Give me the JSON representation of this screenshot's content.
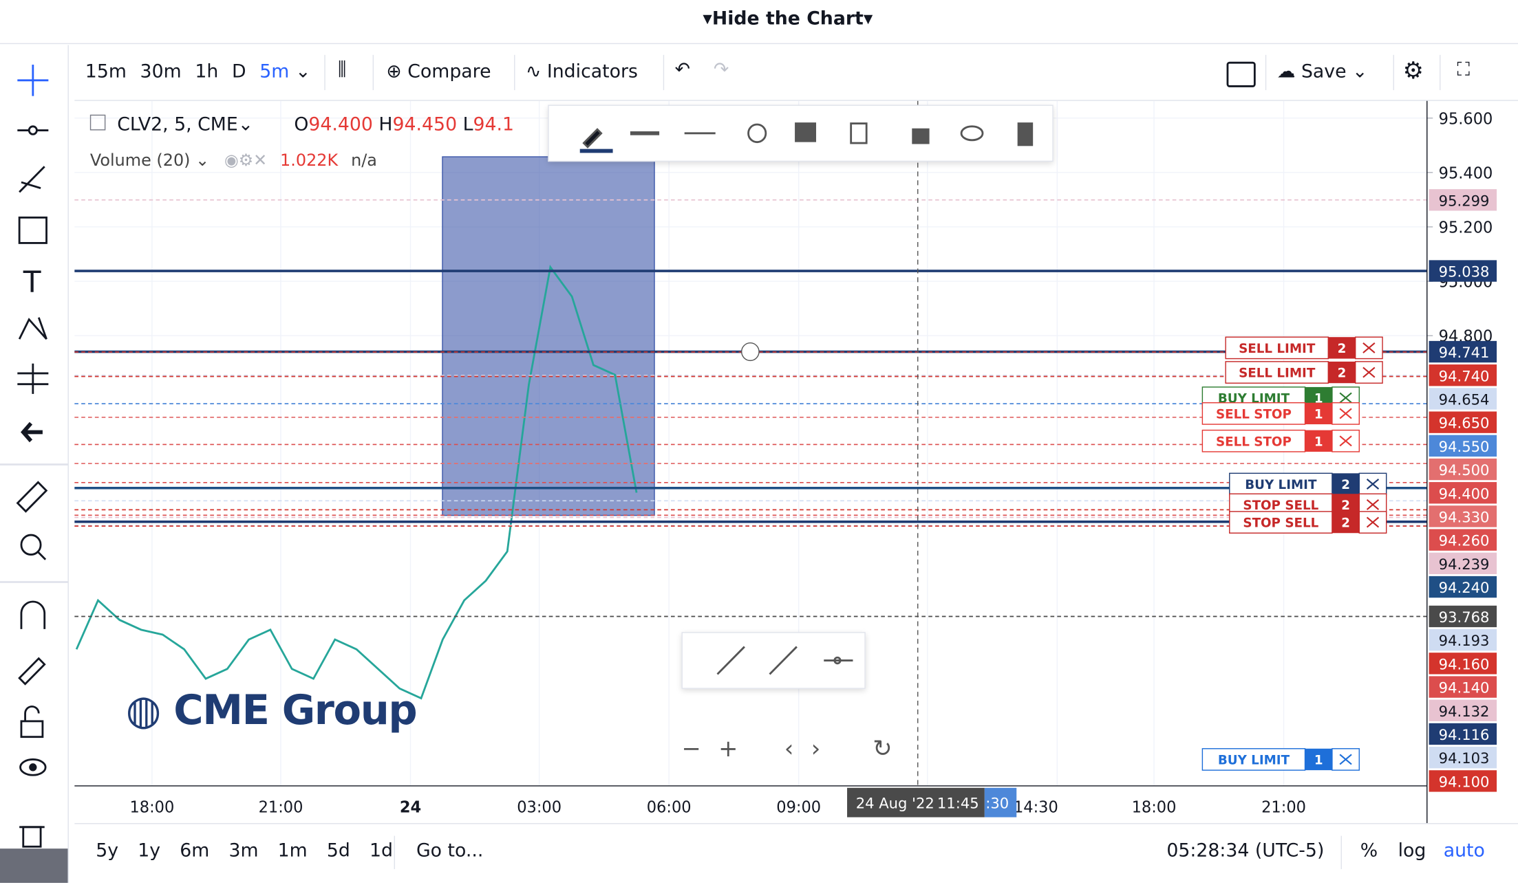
{
  "header": {
    "toggle": "Hide the Chart"
  },
  "toolbar": {
    "intervals": [
      "15m",
      "30m",
      "1h",
      "D",
      "5m"
    ],
    "active_interval": "5m",
    "compare": "Compare",
    "indicators": "Indicators",
    "save": "Save"
  },
  "legend": {
    "symbol": "CLV2, 5, CME",
    "open_key": "O",
    "open": "94.400",
    "high_key": "H",
    "high": "94.450",
    "low_key": "L",
    "low": "94.1",
    "volume": "Volume (20)",
    "volume_value": "1.022K",
    "volume_na": "n/a"
  },
  "watermark": "CME Group",
  "chart_data": {
    "type": "line",
    "color": "#26a69a",
    "x": [
      "16:30",
      "17:00",
      "17:30",
      "18:00",
      "18:30",
      "19:00",
      "19:30",
      "20:00",
      "20:30",
      "21:00",
      "21:30",
      "22:00",
      "22:30",
      "23:00",
      "23:30",
      "00:00",
      "00:30",
      "01:00",
      "01:30",
      "02:00",
      "02:30",
      "03:00",
      "03:30",
      "04:00",
      "04:30",
      "05:00",
      "05:30"
    ],
    "values": [
      93.647,
      93.827,
      93.755,
      93.719,
      93.701,
      93.647,
      93.539,
      93.575,
      93.683,
      93.719,
      93.575,
      93.539,
      93.683,
      93.647,
      93.575,
      93.503,
      93.467,
      93.683,
      93.827,
      93.899,
      94.007,
      94.62,
      95.052,
      94.944,
      94.692,
      94.656,
      94.223
    ],
    "ylim": [
      93.145,
      95.663
    ],
    "yticks": [
      {
        "value": 95.6,
        "label": "95.600"
      },
      {
        "value": 95.4,
        "label": "95.400"
      },
      {
        "value": 95.2,
        "label": "95.200"
      },
      {
        "value": 95,
        "label": "95.000"
      },
      {
        "value": 94.8,
        "label": "94.800"
      }
    ],
    "xtick_labels": [
      "18:00",
      "21:00",
      "24",
      "03:00",
      "06:00",
      "09:00",
      "14:30",
      "18:00",
      "21:00"
    ],
    "crosshair_time": "24 Aug '22",
    "crosshair_clock": "11:45",
    "crosshair_suffix": ":30",
    "price_labels": [
      {
        "value": 95.299,
        "label": "95.299",
        "color": "#e8c3d1"
      },
      {
        "value": 95.038,
        "label": "95.038",
        "color": "#1f3c73"
      },
      {
        "value": 94.741,
        "label": "94.741",
        "color": "#1f3c73"
      },
      {
        "value": 94.74,
        "label": "94.740",
        "color": "#d4342c"
      },
      {
        "value": 94.654,
        "label": "94.654",
        "color": "#cfdcf2"
      },
      {
        "value": 94.65,
        "label": "94.650",
        "color": "#d4342c"
      },
      {
        "value": 94.55,
        "label": "94.550",
        "color": "#4d88d9"
      },
      {
        "value": 94.5,
        "label": "94.500",
        "color": "#e36f6f"
      },
      {
        "value": 94.4,
        "label": "94.400",
        "color": "#dc4d4d"
      },
      {
        "value": 94.33,
        "label": "94.330",
        "color": "#e36f6f"
      },
      {
        "value": 94.26,
        "label": "94.260",
        "color": "#dc4d4d"
      },
      {
        "value": 94.239,
        "label": "94.239",
        "color": "#e8c3d1"
      },
      {
        "value": 94.24,
        "label": "94.240",
        "color": "#1f4f85"
      },
      {
        "value": 93.768,
        "label": "93.768",
        "color": "#4a4a4a"
      },
      {
        "value": 94.193,
        "label": "94.193",
        "color": "#cfdcf2"
      },
      {
        "value": 94.16,
        "label": "94.160",
        "color": "#d4342c"
      },
      {
        "value": 94.14,
        "label": "94.140",
        "color": "#dc4d4d"
      },
      {
        "value": 94.132,
        "label": "94.132",
        "color": "#e8c3d1"
      },
      {
        "value": 94.116,
        "label": "94.116",
        "color": "#1f3c73"
      },
      {
        "value": 94.103,
        "label": "94.103",
        "color": "#cfdcf2"
      },
      {
        "value": 94.1,
        "label": "94.100",
        "color": "#d4342c"
      }
    ]
  },
  "orders": [
    {
      "label": "SELL LIMIT",
      "qty": 2,
      "color": "#c62828"
    },
    {
      "label": "SELL LIMIT",
      "qty": 2,
      "color": "#c62828"
    },
    {
      "label": "BUY LIMIT",
      "qty": 1,
      "color": "#2e7d32"
    },
    {
      "label": "SELL STOP",
      "qty": 1,
      "color": "#e53935"
    },
    {
      "label": "SELL STOP",
      "qty": 1,
      "color": "#e53935"
    },
    {
      "label": "BUY LIMIT",
      "qty": 2,
      "color": "#1f3c73"
    },
    {
      "label": "STOP SELL",
      "qty": 2,
      "color": "#c62828"
    },
    {
      "label": "STOP SELL",
      "qty": 2,
      "color": "#c62828"
    },
    {
      "label": "BUY LIMIT",
      "qty": 1,
      "color": "#1e6fd9"
    }
  ],
  "footer": {
    "ranges": [
      "5y",
      "1y",
      "6m",
      "3m",
      "1m",
      "5d",
      "1d"
    ],
    "goto": "Go to...",
    "clock": "05:28:34 (UTC-5)",
    "percent": "%",
    "log": "log",
    "auto": "auto"
  }
}
